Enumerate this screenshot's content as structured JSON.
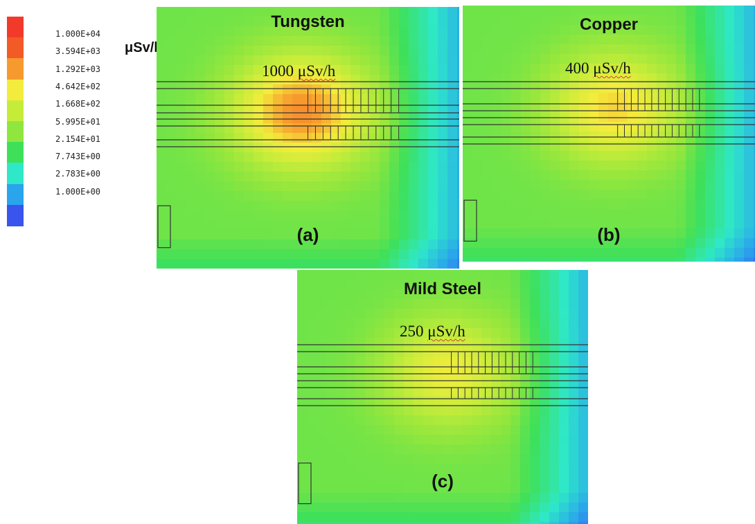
{
  "legend": {
    "unit": "μSv/h",
    "levels": [
      {
        "label": "1.000E+04",
        "color": "#f23a2a"
      },
      {
        "label": "3.594E+03",
        "color": "#f25a26"
      },
      {
        "label": "1.292E+03",
        "color": "#f79a2e"
      },
      {
        "label": "4.642E+02",
        "color": "#f4ec3c"
      },
      {
        "label": "1.668E+02",
        "color": "#c6ec3a"
      },
      {
        "label": "5.995E+01",
        "color": "#8fe63e"
      },
      {
        "label": "2.154E+01",
        "color": "#3ee05a"
      },
      {
        "label": "7.743E+00",
        "color": "#2ee8c8"
      },
      {
        "label": "2.783E+00",
        "color": "#2aa4ec"
      },
      {
        "label": "1.000E+00",
        "color": "#3a54ee"
      }
    ]
  },
  "chart_data": [
    {
      "type": "heatmap",
      "title": "Tungsten",
      "panel_label": "(a)",
      "peak_dose": {
        "value": 1000,
        "text": "1000",
        "unit": "μSv/h"
      },
      "color_scale": "log",
      "scale_range": [
        1,
        10000
      ]
    },
    {
      "type": "heatmap",
      "title": "Copper",
      "panel_label": "(b)",
      "peak_dose": {
        "value": 400,
        "text": "400",
        "unit": "μSv/h"
      },
      "color_scale": "log",
      "scale_range": [
        1,
        10000
      ]
    },
    {
      "type": "heatmap",
      "title": "Mild Steel",
      "panel_label": "(c)",
      "peak_dose": {
        "value": 250,
        "text": "250",
        "unit": "μSv/h"
      },
      "color_scale": "log",
      "scale_range": [
        1,
        10000
      ]
    }
  ]
}
